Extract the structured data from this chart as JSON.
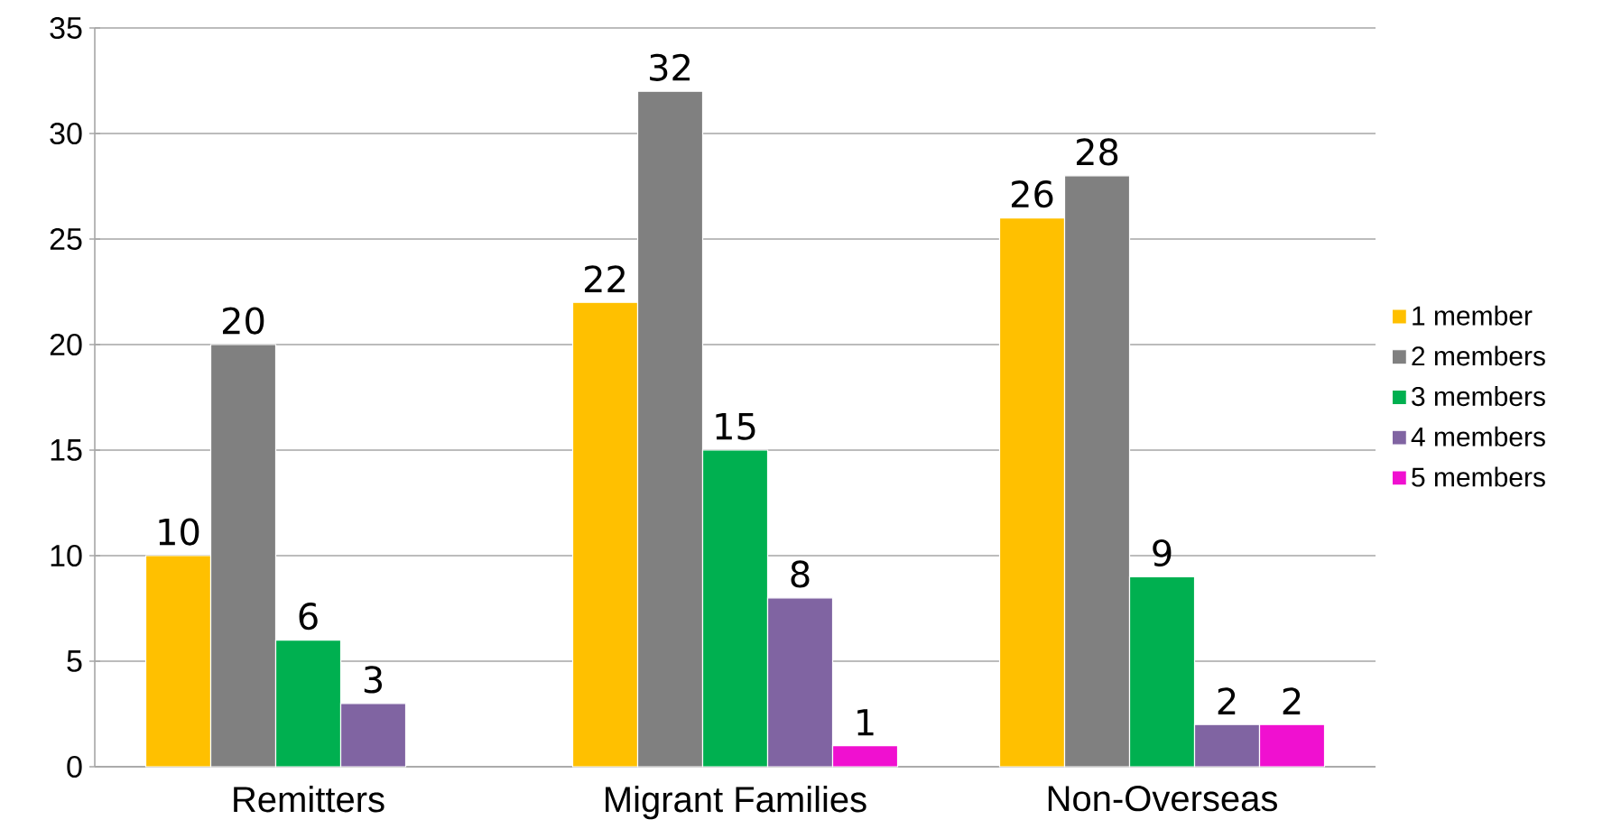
{
  "chart_data": {
    "type": "bar",
    "categories": [
      "Remitters",
      "Migrant Families",
      "Non-Overseas"
    ],
    "series": [
      {
        "name": "1 member",
        "color": "#ffc000",
        "values": [
          10,
          22,
          26
        ]
      },
      {
        "name": "2 members",
        "color": "#808080",
        "values": [
          20,
          32,
          28
        ]
      },
      {
        "name": "3 members",
        "color": "#00b050",
        "values": [
          6,
          15,
          9
        ]
      },
      {
        "name": "4 members",
        "color": "#8064a2",
        "values": [
          3,
          8,
          2
        ]
      },
      {
        "name": "5 members",
        "color": "#f010d0",
        "values": [
          null,
          1,
          2
        ]
      }
    ],
    "ylim": [
      0,
      35
    ],
    "yticks": [
      0,
      5,
      10,
      15,
      20,
      25,
      30,
      35
    ],
    "grid": "y",
    "legend": "right",
    "data_labels": true
  }
}
